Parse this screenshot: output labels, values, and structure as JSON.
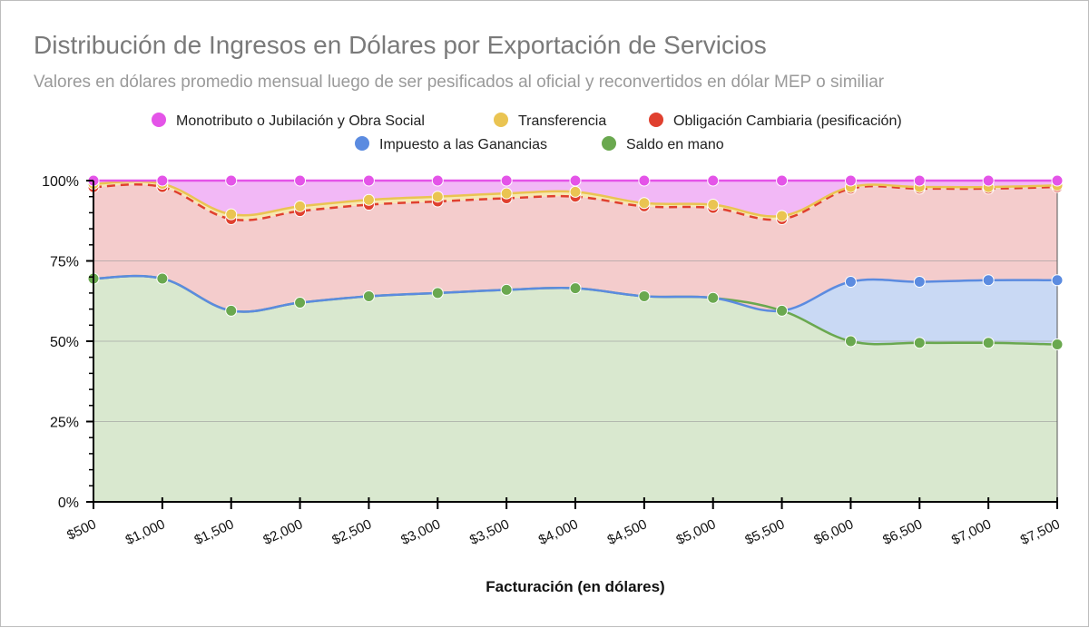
{
  "chart_data": {
    "type": "area",
    "stacked": true,
    "normalized": true,
    "title": "Distribución de Ingresos en Dólares por Exportación de Servicios",
    "subtitle": "Valores en dólares promedio mensual luego de ser pesificados al oficial y reconvertidos en dólar MEP o similiar",
    "xlabel": "Facturación (en dólares)",
    "ylabel": "",
    "ylim": [
      0,
      100
    ],
    "y_ticks": [
      "0%",
      "25%",
      "50%",
      "75%",
      "100%"
    ],
    "categories": [
      "$500",
      "$1,000",
      "$1,500",
      "$2,000",
      "$2,500",
      "$3,000",
      "$3,500",
      "$4,000",
      "$4,500",
      "$5,000",
      "$5,500",
      "$6,000",
      "$6,500",
      "$7,000",
      "$7,500"
    ],
    "legend_position": "top",
    "series": [
      {
        "name": "Saldo en mano",
        "color": "#6aa84f",
        "fill": "#d9e8cf",
        "values": [
          69.5,
          69.5,
          59.5,
          62,
          64,
          65,
          66,
          66.5,
          64,
          63.5,
          59.5,
          50,
          49.5,
          49.5,
          49
        ]
      },
      {
        "name": "Impuesto a las Ganancias",
        "color": "#5b8be0",
        "fill": "#c9d9f4",
        "values": [
          0,
          0,
          0,
          0,
          0,
          0,
          0,
          0,
          0,
          0,
          0,
          18.5,
          19,
          19.5,
          20
        ]
      },
      {
        "name": "Obligación Cambiaria (pesificación)",
        "color": "#e0402f",
        "fill": "#f4cccc",
        "values": [
          28.5,
          28.5,
          28.5,
          28.5,
          28.5,
          28.5,
          28.5,
          28.5,
          28,
          28,
          28.5,
          29,
          29,
          28.5,
          29
        ]
      },
      {
        "name": "Transferencia",
        "color": "#eac452",
        "fill": "#f7e7b4",
        "values": [
          1,
          1,
          1.5,
          1.5,
          1.5,
          1.5,
          1.5,
          1.5,
          1,
          1,
          1,
          0.5,
          0.5,
          0.5,
          0.5
        ]
      },
      {
        "name": "Monotributo o Jubilación y Obra Social",
        "color": "#e454e8",
        "fill": "#f2b8f6",
        "values": [
          1,
          1,
          10.5,
          8,
          6,
          5,
          4,
          3.5,
          7,
          7.5,
          11,
          2,
          2,
          2,
          1.5
        ]
      }
    ]
  },
  "legend": {
    "row1": [
      "Monotributo o Jubilación y Obra Social",
      "Transferencia",
      "Obligación Cambiaria (pesificación)"
    ],
    "row2": [
      "Impuesto a las Ganancias",
      "Saldo en mano"
    ]
  }
}
